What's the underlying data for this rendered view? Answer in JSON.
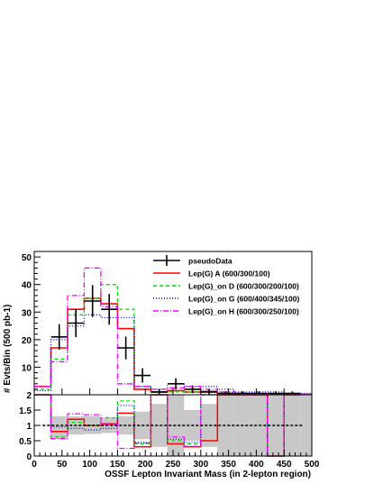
{
  "chart_data": [
    {
      "type": "line",
      "ylabel": "# Evts/Bin (500 pb-1)",
      "xlim": [
        0,
        500
      ],
      "ylim": [
        0,
        52
      ],
      "yticks": [
        10,
        20,
        30,
        40,
        50
      ],
      "legend_position": "top-right",
      "bin_edges": [
        0,
        30,
        60,
        90,
        120,
        150,
        180,
        210,
        240,
        270,
        300,
        330,
        360,
        390,
        420,
        450,
        480,
        500
      ],
      "series": [
        {
          "name": "pseudoData",
          "kind": "data",
          "color": "#000000",
          "x": [
            45,
            75,
            105,
            135,
            165,
            195,
            225,
            255,
            285,
            315,
            345,
            375,
            405,
            435,
            465
          ],
          "y": [
            21,
            26,
            34,
            31,
            17,
            7,
            1,
            4,
            2,
            1,
            0.5,
            0.5,
            0.5,
            0.5,
            0.5
          ],
          "err": [
            4.6,
            5.1,
            5.8,
            5.6,
            4.1,
            2.6,
            1.0,
            2.0,
            1.4,
            1.0,
            0.7,
            0.7,
            0.7,
            0.7,
            0.7
          ]
        },
        {
          "name": "Lep(G) A (600/300/100)",
          "kind": "hist",
          "color": "#ff0000",
          "dash": "",
          "values": [
            3,
            17,
            31,
            35,
            33,
            24,
            2,
            1,
            1.5,
            1,
            1.2,
            0.5,
            0.4,
            0.4,
            0.3,
            0.3,
            0.2
          ]
        },
        {
          "name": "Lep(G)_on D (600/300/200/100)",
          "kind": "hist",
          "color": "#00dd00",
          "dash": "4,3",
          "values": [
            2,
            13,
            29,
            35,
            40,
            31,
            3,
            1,
            1,
            1,
            1,
            1,
            0.5,
            0.4,
            0.3,
            0.3,
            0.2
          ]
        },
        {
          "name": "Lep(G)_on G (600/400/345/100)",
          "kind": "hist",
          "color": "#0000ff",
          "dash": "1,2",
          "values": [
            1.5,
            20,
            25,
            29,
            28,
            28,
            3,
            2,
            4,
            3,
            3,
            2,
            1,
            1,
            1,
            0.6,
            0.5
          ]
        },
        {
          "name": "Lep(G)_on H (600/300/250/100)",
          "kind": "hist",
          "color": "#ff00ff",
          "dash": "6,2,1,2",
          "values": [
            3,
            12,
            36,
            46,
            32,
            4,
            3,
            2,
            2.5,
            3,
            2,
            1,
            0.6,
            0.5,
            0.3,
            0.3,
            0.2
          ]
        }
      ]
    },
    {
      "type": "line",
      "xlabel": "OSSF Lepton Invariant Mass (in 2-lepton region)",
      "xlim": [
        0,
        500
      ],
      "ylim": [
        0,
        2
      ],
      "yticks": [
        0,
        0.5,
        1,
        1.5,
        2
      ],
      "xticks": [
        0,
        50,
        100,
        150,
        200,
        250,
        300,
        350,
        400,
        450,
        500
      ],
      "reference_line": 1,
      "band_bins": [
        {
          "x0": 30,
          "x1": 60,
          "lo": 0.55,
          "hi": 1.3
        },
        {
          "x0": 60,
          "x1": 90,
          "lo": 0.7,
          "hi": 1.3
        },
        {
          "x0": 90,
          "x1": 120,
          "lo": 0.72,
          "hi": 1.3
        },
        {
          "x0": 120,
          "x1": 150,
          "lo": 0.75,
          "hi": 1.25
        },
        {
          "x0": 150,
          "x1": 180,
          "lo": 0.7,
          "hi": 1.3
        },
        {
          "x0": 180,
          "x1": 210,
          "lo": 0.55,
          "hi": 1.45
        },
        {
          "x0": 210,
          "x1": 240,
          "lo": 0.3,
          "hi": 1.7
        },
        {
          "x0": 240,
          "x1": 270,
          "lo": 0,
          "hi": 2
        },
        {
          "x0": 270,
          "x1": 300,
          "lo": 0.5,
          "hi": 1.5
        },
        {
          "x0": 300,
          "x1": 330,
          "lo": 0.3,
          "hi": 1.7
        },
        {
          "x0": 330,
          "x1": 360,
          "lo": 0,
          "hi": 2
        },
        {
          "x0": 360,
          "x1": 390,
          "lo": 0,
          "hi": 2
        },
        {
          "x0": 390,
          "x1": 420,
          "lo": 0,
          "hi": 2
        },
        {
          "x0": 420,
          "x1": 450,
          "lo": 0,
          "hi": 2
        },
        {
          "x0": 450,
          "x1": 480,
          "lo": 0,
          "hi": 2
        },
        {
          "x0": 480,
          "x1": 500,
          "lo": 0,
          "hi": 2
        }
      ],
      "ratio_edges": [
        0,
        30,
        60,
        90,
        120,
        150,
        180,
        210,
        240,
        270,
        300,
        330,
        360,
        390,
        420,
        450,
        480
      ],
      "series": [
        {
          "name": "Lep(G) A (600/300/100)",
          "color": "#ff0000",
          "dash": "",
          "values": [
            2,
            0.8,
            1.2,
            1.0,
            1.05,
            1.4,
            0.3,
            2,
            0.4,
            0.3,
            0.5,
            2,
            2,
            2,
            0,
            2
          ]
        },
        {
          "name": "Lep(G)_on D (600/300/200/100)",
          "color": "#00dd00",
          "dash": "4,3",
          "values": [
            2,
            0.62,
            1.1,
            1.0,
            1.25,
            1.8,
            0.4,
            2,
            0.5,
            0.4,
            2,
            2,
            2,
            2,
            0,
            2
          ]
        },
        {
          "name": "Lep(G)_on G (600/400/345/100)",
          "color": "#0000ff",
          "dash": "1,2",
          "values": [
            2,
            0.95,
            0.9,
            0.85,
            0.9,
            1.65,
            0.45,
            2,
            0.55,
            0.45,
            2,
            2,
            2,
            2,
            0,
            2
          ]
        },
        {
          "name": "Lep(G)_on H (600/300/250/100)",
          "color": "#ff00ff",
          "dash": "6,2,1,2",
          "values": [
            2,
            0.57,
            1.38,
            1.35,
            1.03,
            0.25,
            0.42,
            2,
            0.62,
            0.32,
            2,
            2,
            2,
            2,
            0,
            2
          ]
        }
      ]
    }
  ]
}
